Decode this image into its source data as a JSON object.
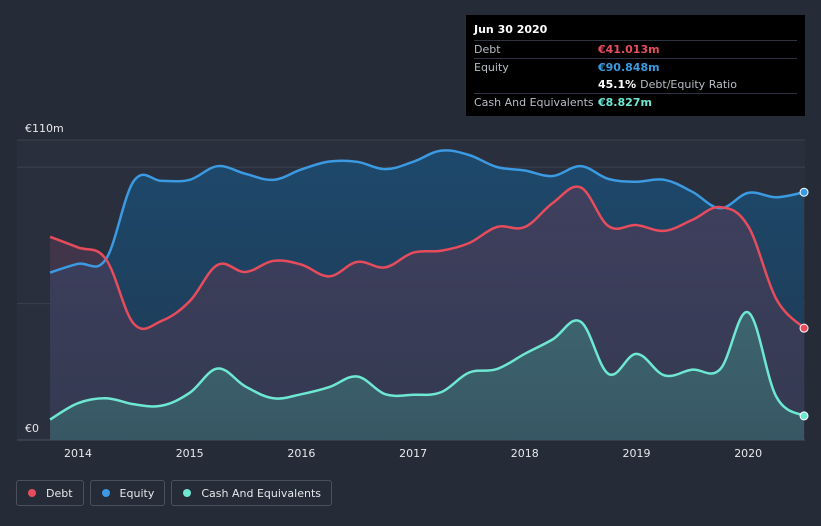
{
  "chart_data": {
    "type": "area",
    "title": "",
    "xlabel": "",
    "ylabel": "",
    "y_unit": "€m",
    "ylim": [
      0,
      110
    ],
    "xlim": [
      2013.75,
      2020.5
    ],
    "y_top_label": "€110m",
    "y_bottom_label": "€0",
    "x_ticks": [
      {
        "value": 2014,
        "label": "2014"
      },
      {
        "value": 2015,
        "label": "2015"
      },
      {
        "value": 2016,
        "label": "2016"
      },
      {
        "value": 2017,
        "label": "2017"
      },
      {
        "value": 2018,
        "label": "2018"
      },
      {
        "value": 2019,
        "label": "2019"
      },
      {
        "value": 2020,
        "label": "2020"
      }
    ],
    "series": [
      {
        "name": "Equity",
        "color": "#3b9ae1",
        "x": [
          2013.75,
          2014.0,
          2014.25,
          2014.5,
          2014.75,
          2015.0,
          2015.25,
          2015.5,
          2015.75,
          2016.0,
          2016.25,
          2016.5,
          2016.75,
          2017.0,
          2017.25,
          2017.5,
          2017.75,
          2018.0,
          2018.25,
          2018.5,
          2018.75,
          2019.0,
          2019.25,
          2019.5,
          2019.75,
          2020.0,
          2020.25,
          2020.5
        ],
        "values": [
          61.4,
          64.6,
          66.3,
          95.0,
          95.0,
          95.4,
          100.4,
          97.6,
          95.4,
          99.2,
          102.1,
          102.0,
          99.3,
          102.0,
          106.1,
          104.5,
          100.1,
          98.8,
          96.8,
          100.4,
          95.7,
          94.7,
          95.4,
          91.0,
          85.0,
          90.6,
          89.0,
          90.848
        ]
      },
      {
        "name": "Debt",
        "color": "#e64c5c",
        "x": [
          2013.75,
          2014.0,
          2014.25,
          2014.5,
          2014.75,
          2015.0,
          2015.25,
          2015.5,
          2015.75,
          2016.0,
          2016.25,
          2016.5,
          2016.75,
          2017.0,
          2017.25,
          2017.5,
          2017.75,
          2018.0,
          2018.25,
          2018.5,
          2018.75,
          2019.0,
          2019.25,
          2019.5,
          2019.75,
          2020.0,
          2020.25,
          2020.5
        ],
        "values": [
          74.5,
          70.6,
          66.3,
          42.6,
          43.7,
          50.9,
          64.2,
          61.6,
          65.7,
          64.3,
          60.0,
          65.3,
          63.3,
          68.7,
          69.4,
          72.2,
          78.1,
          78.1,
          86.9,
          92.6,
          78.4,
          78.8,
          76.7,
          80.7,
          85.4,
          78.4,
          51.8,
          41.013
        ]
      },
      {
        "name": "Cash And Equivalents",
        "color": "#6ee7d3",
        "x": [
          2013.75,
          2014.0,
          2014.25,
          2014.5,
          2014.75,
          2015.0,
          2015.25,
          2015.5,
          2015.75,
          2016.0,
          2016.25,
          2016.5,
          2016.75,
          2017.0,
          2017.25,
          2017.5,
          2017.75,
          2018.0,
          2018.25,
          2018.5,
          2018.75,
          2019.0,
          2019.25,
          2019.5,
          2019.75,
          2020.0,
          2020.25,
          2020.5
        ],
        "values": [
          7.5,
          13.5,
          15.3,
          13.1,
          12.6,
          17.3,
          26.2,
          19.6,
          15.3,
          16.8,
          19.4,
          23.3,
          16.8,
          16.6,
          17.5,
          24.7,
          26.0,
          31.6,
          36.9,
          43.4,
          24.2,
          31.6,
          23.7,
          25.8,
          26.0,
          46.8,
          16.0,
          8.827
        ]
      }
    ],
    "tooltip": {
      "date": "Jun 30 2020",
      "rows": [
        {
          "label": "Debt",
          "value": "€41.013m",
          "color": "#e64c5c"
        },
        {
          "label": "Equity",
          "value": "€90.848m",
          "color": "#3b9ae1"
        }
      ],
      "ratio_value": "45.1%",
      "ratio_label": "Debt/Equity Ratio",
      "cash_label": "Cash And Equivalents",
      "cash_value": "€8.827m",
      "cash_color": "#6ee7d3"
    },
    "legend": [
      {
        "label": "Debt",
        "color": "#e64c5c"
      },
      {
        "label": "Equity",
        "color": "#3b9ae1"
      },
      {
        "label": "Cash And Equivalents",
        "color": "#6ee7d3"
      }
    ]
  }
}
